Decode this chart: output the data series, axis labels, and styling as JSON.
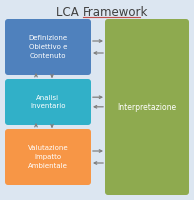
{
  "title1": "LCA ",
  "title2": "Framework",
  "bg_color": "#dce6f1",
  "outer_box_edge_color": "#b8cce4",
  "box1_label": "Definizione\nObiettivo e\nContenuto",
  "box2_label": "Analisi\nInventario",
  "box3_label": "Valutazione\nImpatto\nAmbientale",
  "box4_label": "Interpretazione",
  "box1_color": "#4f81bd",
  "box2_color": "#31b0c8",
  "box3_color": "#f79646",
  "box4_color": "#8eaa4f",
  "box_text_color": "#ffffff",
  "arrow_color": "#808080",
  "title_color": "#404040",
  "underline_color": "#c0504d",
  "figw": 1.94,
  "figh": 2.0,
  "dpi": 100
}
